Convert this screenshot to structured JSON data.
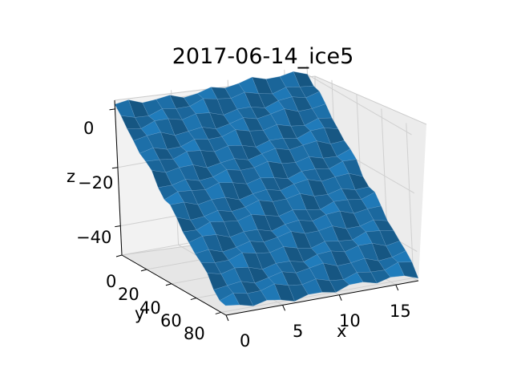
{
  "chart_data": {
    "type": "surface",
    "title": "2017-06-14_ice5",
    "xlabel": "x",
    "ylabel": "y",
    "zlabel": "z",
    "xlim": [
      0,
      17
    ],
    "ylim": [
      0,
      84
    ],
    "zlim": [
      -50,
      3
    ],
    "xticks": [
      "0",
      "5",
      "10",
      "15"
    ],
    "yticks": [
      "0",
      "20",
      "40",
      "60",
      "80"
    ],
    "zticks": [
      "0",
      "−20",
      "−40"
    ],
    "grid": true,
    "legend": "none",
    "surface_color": "#1f77b4",
    "surface": {
      "x_range": [
        0,
        17
      ],
      "y_range": [
        0,
        84
      ],
      "z_at_y_min": 1,
      "z_at_y_max": -48,
      "slope_direction": "decreasing along y"
    }
  }
}
